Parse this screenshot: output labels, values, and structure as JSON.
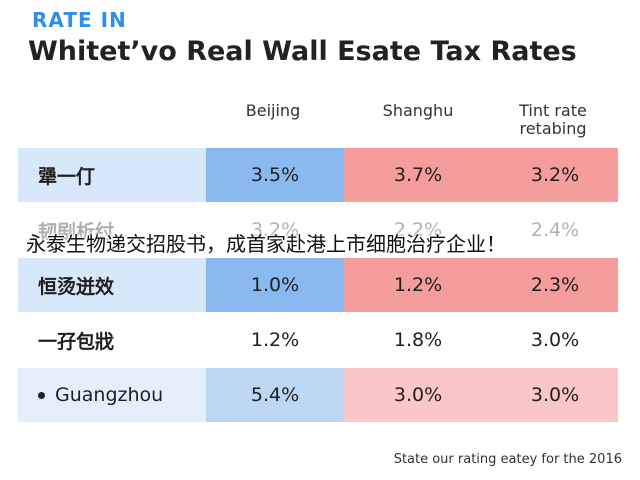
{
  "kicker": "RATE IN",
  "overlay_caption": "永泰生物递交招股书，成首家赴港上市细胞治疗企业！",
  "footer": "State our rating eatey for the 2016",
  "chart_data": {
    "type": "table",
    "title": "Whitet’vo Real Wall Esate Tax Rates",
    "columns": [
      "Beijing",
      "Shanghu",
      "Tint rate retabing"
    ],
    "rows": [
      {
        "label": "犟一仃",
        "values": [
          "3.5%",
          "3.7%",
          "3.2%"
        ]
      },
      {
        "label": "韧剧析纣",
        "values": [
          "3.2%",
          "2.2%",
          "2.4%"
        ]
      },
      {
        "label": "恒烫迸效",
        "values": [
          "1.0%",
          "1.2%",
          "2.3%"
        ]
      },
      {
        "label": "一孖包戕",
        "values": [
          "1.2%",
          "1.8%",
          "3.0%"
        ]
      },
      {
        "label": "Guangzhou",
        "values": [
          "5.4%",
          "3.0%",
          "3.0%"
        ]
      }
    ],
    "colors": {
      "blue_label": "#d7e8fb",
      "blue_value": "#8ab9ef",
      "red_value": "#f59c9c",
      "accent": "#2f8fe8"
    }
  }
}
